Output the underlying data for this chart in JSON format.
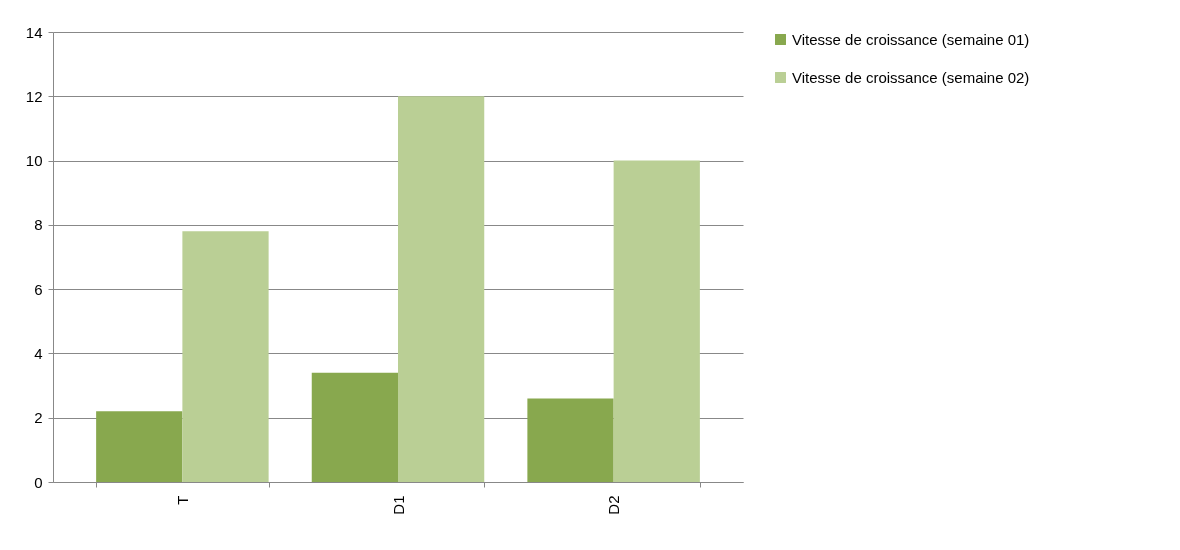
{
  "chart_data": {
    "type": "bar",
    "categories": [
      "T",
      "D1",
      "D2"
    ],
    "series": [
      {
        "name": "Vitesse de croissance (semaine 01)",
        "color": "#88a84e",
        "values": [
          2.2,
          3.4,
          2.6
        ]
      },
      {
        "name": "Vitesse de croissance (semaine 02)",
        "color": "#bacf95",
        "values": [
          7.8,
          12,
          10
        ]
      }
    ],
    "ylim": [
      0,
      14
    ],
    "yticks": [
      0,
      2,
      4,
      6,
      8,
      10,
      12,
      14
    ],
    "grid": "y",
    "legend": "right"
  }
}
